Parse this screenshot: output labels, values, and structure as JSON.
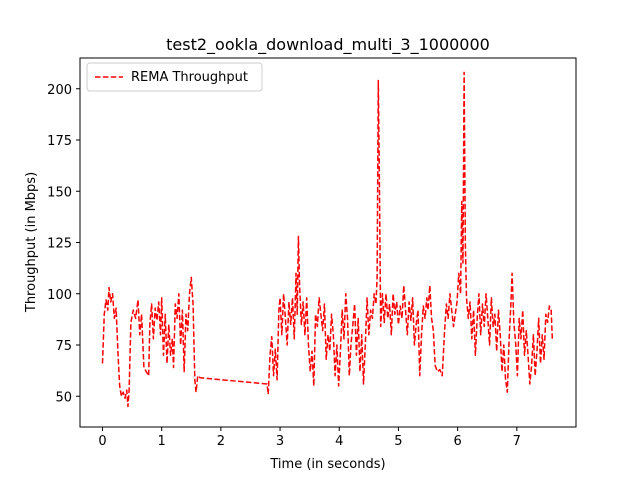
{
  "chart_data": {
    "type": "line",
    "title": "test2_ookla_download_multi_3_1000000",
    "xlabel": "Time (in seconds)",
    "ylabel": "Throughput (in Mbps)",
    "xlim": [
      -0.38,
      8.0
    ],
    "ylim": [
      35,
      215
    ],
    "xticks": [
      0,
      1,
      2,
      3,
      4,
      5,
      6,
      7
    ],
    "yticks": [
      50,
      75,
      100,
      125,
      150,
      175,
      200
    ],
    "grid": false,
    "legend": {
      "placement": "top-left"
    },
    "series": [
      {
        "name": "REMA Throughput",
        "color": "#ff0000",
        "line_style": "dashed",
        "points": [
          [
            0.0,
            66
          ],
          [
            0.03,
            90
          ],
          [
            0.06,
            97
          ],
          [
            0.09,
            92
          ],
          [
            0.11,
            103
          ],
          [
            0.14,
            96
          ],
          [
            0.17,
            100
          ],
          [
            0.2,
            88
          ],
          [
            0.23,
            93
          ],
          [
            0.26,
            72
          ],
          [
            0.29,
            55
          ],
          [
            0.32,
            50
          ],
          [
            0.35,
            52
          ],
          [
            0.38,
            49
          ],
          [
            0.41,
            53
          ],
          [
            0.43,
            45
          ],
          [
            0.45,
            53
          ],
          [
            0.48,
            86
          ],
          [
            0.52,
            92
          ],
          [
            0.56,
            88
          ],
          [
            0.6,
            97
          ],
          [
            0.63,
            80
          ],
          [
            0.66,
            90
          ],
          [
            0.7,
            64
          ],
          [
            0.74,
            62
          ],
          [
            0.78,
            60
          ],
          [
            0.8,
            85
          ],
          [
            0.83,
            95
          ],
          [
            0.86,
            78
          ],
          [
            0.89,
            93
          ],
          [
            0.92,
            87
          ],
          [
            0.95,
            96
          ],
          [
            0.98,
            80
          ],
          [
            1.0,
            98
          ],
          [
            1.03,
            70
          ],
          [
            1.06,
            90
          ],
          [
            1.09,
            66
          ],
          [
            1.12,
            85
          ],
          [
            1.15,
            70
          ],
          [
            1.18,
            78
          ],
          [
            1.2,
            64
          ],
          [
            1.23,
            95
          ],
          [
            1.26,
            88
          ],
          [
            1.29,
            100
          ],
          [
            1.32,
            75
          ],
          [
            1.35,
            92
          ],
          [
            1.38,
            62
          ],
          [
            1.41,
            90
          ],
          [
            1.44,
            82
          ],
          [
            1.47,
            100
          ],
          [
            1.5,
            108
          ],
          [
            1.53,
            95
          ],
          [
            1.56,
            58
          ],
          [
            1.58,
            52
          ],
          [
            1.61,
            60
          ],
          [
            1.65,
            59
          ],
          [
            2.78,
            56
          ],
          [
            2.8,
            51
          ],
          [
            2.83,
            70
          ],
          [
            2.86,
            79
          ],
          [
            2.89,
            60
          ],
          [
            2.92,
            73
          ],
          [
            2.95,
            58
          ],
          [
            2.98,
            92
          ],
          [
            3.0,
            98
          ],
          [
            3.03,
            80
          ],
          [
            3.06,
            100
          ],
          [
            3.09,
            88
          ],
          [
            3.12,
            75
          ],
          [
            3.15,
            96
          ],
          [
            3.18,
            85
          ],
          [
            3.21,
            98
          ],
          [
            3.24,
            78
          ],
          [
            3.27,
            110
          ],
          [
            3.29,
            90
          ],
          [
            3.31,
            128
          ],
          [
            3.33,
            104
          ],
          [
            3.36,
            85
          ],
          [
            3.39,
            96
          ],
          [
            3.42,
            80
          ],
          [
            3.45,
            98
          ],
          [
            3.48,
            75
          ],
          [
            3.51,
            62
          ],
          [
            3.54,
            72
          ],
          [
            3.57,
            55
          ],
          [
            3.6,
            90
          ],
          [
            3.63,
            84
          ],
          [
            3.66,
            98
          ],
          [
            3.69,
            90
          ],
          [
            3.72,
            82
          ],
          [
            3.75,
            95
          ],
          [
            3.78,
            68
          ],
          [
            3.81,
            80
          ],
          [
            3.84,
            72
          ],
          [
            3.87,
            90
          ],
          [
            3.9,
            80
          ],
          [
            3.93,
            60
          ],
          [
            3.96,
            75
          ],
          [
            3.99,
            55
          ],
          [
            4.02,
            72
          ],
          [
            4.05,
            92
          ],
          [
            4.08,
            78
          ],
          [
            4.11,
            100
          ],
          [
            4.14,
            88
          ],
          [
            4.17,
            60
          ],
          [
            4.2,
            76
          ],
          [
            4.23,
            85
          ],
          [
            4.26,
            95
          ],
          [
            4.29,
            70
          ],
          [
            4.32,
            88
          ],
          [
            4.35,
            62
          ],
          [
            4.38,
            80
          ],
          [
            4.41,
            56
          ],
          [
            4.44,
            75
          ],
          [
            4.47,
            98
          ],
          [
            4.5,
            80
          ],
          [
            4.53,
            92
          ],
          [
            4.56,
            88
          ],
          [
            4.59,
            100
          ],
          [
            4.62,
            95
          ],
          [
            4.64,
            108
          ],
          [
            4.66,
            204
          ],
          [
            4.68,
            150
          ],
          [
            4.7,
            84
          ],
          [
            4.73,
            100
          ],
          [
            4.76,
            86
          ],
          [
            4.79,
            100
          ],
          [
            4.82,
            88
          ],
          [
            4.85,
            95
          ],
          [
            4.88,
            80
          ],
          [
            4.91,
            100
          ],
          [
            4.94,
            90
          ],
          [
            4.97,
            96
          ],
          [
            5.0,
            85
          ],
          [
            5.03,
            94
          ],
          [
            5.06,
            88
          ],
          [
            5.09,
            104
          ],
          [
            5.12,
            92
          ],
          [
            5.15,
            80
          ],
          [
            5.18,
            96
          ],
          [
            5.21,
            87
          ],
          [
            5.24,
            98
          ],
          [
            5.27,
            75
          ],
          [
            5.3,
            85
          ],
          [
            5.33,
            92
          ],
          [
            5.36,
            60
          ],
          [
            5.39,
            80
          ],
          [
            5.42,
            94
          ],
          [
            5.45,
            88
          ],
          [
            5.48,
            98
          ],
          [
            5.5,
            92
          ],
          [
            5.53,
            104
          ],
          [
            5.56,
            88
          ],
          [
            5.59,
            82
          ],
          [
            5.62,
            65
          ],
          [
            5.66,
            62
          ],
          [
            5.7,
            63
          ],
          [
            5.74,
            60
          ],
          [
            5.78,
            82
          ],
          [
            5.81,
            95
          ],
          [
            5.84,
            88
          ],
          [
            5.87,
            100
          ],
          [
            5.9,
            92
          ],
          [
            5.93,
            84
          ],
          [
            5.96,
            90
          ],
          [
            5.99,
            96
          ],
          [
            6.02,
            110
          ],
          [
            6.05,
            100
          ],
          [
            6.07,
            145
          ],
          [
            6.09,
            115
          ],
          [
            6.11,
            208
          ],
          [
            6.13,
            125
          ],
          [
            6.15,
            98
          ],
          [
            6.18,
            88
          ],
          [
            6.21,
            96
          ],
          [
            6.24,
            78
          ],
          [
            6.27,
            92
          ],
          [
            6.3,
            70
          ],
          [
            6.33,
            88
          ],
          [
            6.36,
            100
          ],
          [
            6.39,
            80
          ],
          [
            6.42,
            95
          ],
          [
            6.45,
            84
          ],
          [
            6.48,
            100
          ],
          [
            6.51,
            88
          ],
          [
            6.54,
            75
          ],
          [
            6.57,
            98
          ],
          [
            6.6,
            84
          ],
          [
            6.63,
            90
          ],
          [
            6.66,
            72
          ],
          [
            6.69,
            92
          ],
          [
            6.72,
            80
          ],
          [
            6.75,
            62
          ],
          [
            6.78,
            75
          ],
          [
            6.81,
            58
          ],
          [
            6.84,
            52
          ],
          [
            6.87,
            78
          ],
          [
            6.9,
            95
          ],
          [
            6.92,
            110
          ],
          [
            6.95,
            86
          ],
          [
            6.98,
            76
          ],
          [
            7.01,
            60
          ],
          [
            7.04,
            88
          ],
          [
            7.07,
            78
          ],
          [
            7.1,
            92
          ],
          [
            7.13,
            70
          ],
          [
            7.16,
            82
          ],
          [
            7.19,
            70
          ],
          [
            7.22,
            56
          ],
          [
            7.25,
            65
          ],
          [
            7.28,
            80
          ],
          [
            7.31,
            60
          ],
          [
            7.34,
            72
          ],
          [
            7.37,
            88
          ],
          [
            7.4,
            66
          ],
          [
            7.43,
            80
          ],
          [
            7.46,
            68
          ],
          [
            7.49,
            90
          ],
          [
            7.52,
            86
          ],
          [
            7.55,
            94
          ],
          [
            7.58,
            92
          ],
          [
            7.6,
            78
          ]
        ]
      }
    ]
  }
}
